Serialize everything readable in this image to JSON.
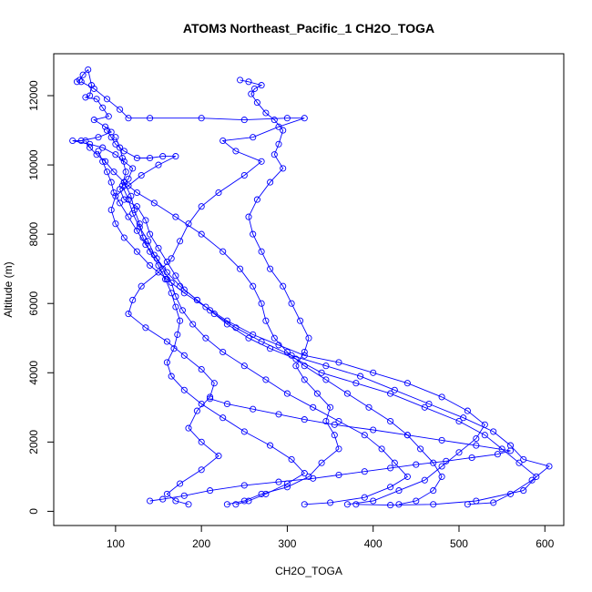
{
  "chart_data": {
    "type": "line",
    "title": "ATOM3 Northeast_Pacific_1 CH2O_TOGA",
    "xlabel": "CH2O_TOGA",
    "ylabel": "Altitude (m)",
    "xlim": [
      28,
      622
    ],
    "ylim": [
      -410,
      13210
    ],
    "xticks": [
      100,
      200,
      300,
      400,
      500,
      600
    ],
    "yticks": [
      0,
      2000,
      4000,
      6000,
      8000,
      10000,
      12000
    ],
    "grid": false,
    "marker": "open-circle",
    "color": "#0000ff",
    "series": [
      {
        "points": [
          [
            55,
            12400
          ],
          [
            58,
            12450
          ],
          [
            62,
            12600
          ],
          [
            68,
            12750
          ],
          [
            72,
            12300
          ],
          [
            70,
            12000
          ],
          [
            65,
            11950
          ],
          [
            78,
            11900
          ],
          [
            85,
            11650
          ],
          [
            92,
            11400
          ],
          [
            75,
            11300
          ],
          [
            88,
            11100
          ],
          [
            95,
            10950
          ],
          [
            80,
            10800
          ],
          [
            60,
            10700
          ],
          [
            50,
            10700
          ],
          [
            70,
            10600
          ],
          [
            85,
            10500
          ],
          [
            100,
            10300
          ],
          [
            110,
            10100
          ],
          [
            120,
            9900
          ],
          [
            115,
            9600
          ],
          [
            105,
            9300
          ],
          [
            110,
            9000
          ],
          [
            125,
            8800
          ],
          [
            135,
            8400
          ],
          [
            140,
            8000
          ],
          [
            150,
            7600
          ],
          [
            160,
            7200
          ],
          [
            170,
            6800
          ],
          [
            180,
            6400
          ],
          [
            195,
            6100
          ],
          [
            210,
            5800
          ],
          [
            230,
            5400
          ],
          [
            255,
            5000
          ],
          [
            280,
            4700
          ],
          [
            310,
            4400
          ],
          [
            340,
            4000
          ],
          [
            380,
            3700
          ],
          [
            420,
            3400
          ],
          [
            460,
            3000
          ],
          [
            500,
            2600
          ],
          [
            530,
            2200
          ],
          [
            550,
            1800
          ],
          [
            570,
            1400
          ],
          [
            590,
            1000
          ],
          [
            575,
            600
          ],
          [
            520,
            300
          ],
          [
            470,
            200
          ],
          [
            420,
            180
          ],
          [
            380,
            200
          ]
        ]
      },
      {
        "points": [
          [
            60,
            12400
          ],
          [
            75,
            12200
          ],
          [
            90,
            11900
          ],
          [
            105,
            11600
          ],
          [
            115,
            11350
          ],
          [
            140,
            11350
          ],
          [
            200,
            11350
          ],
          [
            250,
            11300
          ],
          [
            300,
            11350
          ],
          [
            320,
            11350
          ],
          [
            290,
            11100
          ],
          [
            260,
            10800
          ],
          [
            225,
            10700
          ],
          [
            240,
            10400
          ],
          [
            270,
            10100
          ],
          [
            250,
            9700
          ],
          [
            220,
            9200
          ],
          [
            200,
            8800
          ],
          [
            185,
            8300
          ],
          [
            175,
            7800
          ],
          [
            165,
            7300
          ],
          [
            150,
            6900
          ],
          [
            130,
            6500
          ],
          [
            120,
            6100
          ],
          [
            115,
            5700
          ],
          [
            135,
            5300
          ],
          [
            160,
            4900
          ],
          [
            180,
            4500
          ],
          [
            200,
            4100
          ],
          [
            215,
            3700
          ],
          [
            210,
            3300
          ],
          [
            195,
            2900
          ],
          [
            185,
            2400
          ],
          [
            200,
            2000
          ],
          [
            220,
            1600
          ],
          [
            200,
            1200
          ],
          [
            175,
            800
          ],
          [
            160,
            500
          ],
          [
            170,
            300
          ],
          [
            185,
            200
          ]
        ]
      },
      {
        "points": [
          [
            245,
            12450
          ],
          [
            255,
            12400
          ],
          [
            270,
            12300
          ],
          [
            262,
            12200
          ],
          [
            258,
            12050
          ],
          [
            265,
            11800
          ],
          [
            275,
            11500
          ],
          [
            285,
            11300
          ],
          [
            295,
            11000
          ],
          [
            290,
            10600
          ],
          [
            285,
            10300
          ],
          [
            295,
            9900
          ],
          [
            280,
            9500
          ],
          [
            265,
            9000
          ],
          [
            255,
            8500
          ],
          [
            260,
            8000
          ],
          [
            270,
            7500
          ],
          [
            280,
            7000
          ],
          [
            295,
            6500
          ],
          [
            305,
            6000
          ],
          [
            315,
            5500
          ],
          [
            325,
            5000
          ],
          [
            320,
            4600
          ],
          [
            310,
            4200
          ],
          [
            320,
            3800
          ],
          [
            335,
            3400
          ],
          [
            350,
            3000
          ],
          [
            345,
            2600
          ],
          [
            355,
            2200
          ],
          [
            360,
            1800
          ],
          [
            340,
            1400
          ],
          [
            325,
            1000
          ],
          [
            300,
            700
          ],
          [
            270,
            500
          ],
          [
            250,
            300
          ],
          [
            230,
            200
          ]
        ]
      },
      {
        "points": [
          [
            90,
            11000
          ],
          [
            95,
            10800
          ],
          [
            100,
            10600
          ],
          [
            110,
            10400
          ],
          [
            125,
            10200
          ],
          [
            140,
            10200
          ],
          [
            155,
            10250
          ],
          [
            170,
            10250
          ],
          [
            150,
            10000
          ],
          [
            130,
            9700
          ],
          [
            115,
            9400
          ],
          [
            100,
            9100
          ],
          [
            95,
            8700
          ],
          [
            100,
            8300
          ],
          [
            110,
            7900
          ],
          [
            125,
            7500
          ],
          [
            140,
            7100
          ],
          [
            160,
            6700
          ],
          [
            180,
            6300
          ],
          [
            205,
            5900
          ],
          [
            230,
            5500
          ],
          [
            260,
            5100
          ],
          [
            290,
            4800
          ],
          [
            320,
            4500
          ],
          [
            360,
            4300
          ],
          [
            400,
            4000
          ],
          [
            440,
            3700
          ],
          [
            480,
            3300
          ],
          [
            510,
            2900
          ],
          [
            530,
            2500
          ],
          [
            520,
            2100
          ],
          [
            500,
            1700
          ],
          [
            480,
            1300
          ],
          [
            460,
            900
          ],
          [
            430,
            600
          ],
          [
            400,
            300
          ],
          [
            370,
            200
          ]
        ]
      },
      {
        "points": [
          [
            100,
            10800
          ],
          [
            105,
            10500
          ],
          [
            108,
            10200
          ],
          [
            112,
            9800
          ],
          [
            108,
            9400
          ],
          [
            115,
            9000
          ],
          [
            120,
            8600
          ],
          [
            128,
            8200
          ],
          [
            138,
            7800
          ],
          [
            145,
            7400
          ],
          [
            155,
            7000
          ],
          [
            165,
            6600
          ],
          [
            170,
            6200
          ],
          [
            178,
            5800
          ],
          [
            190,
            5400
          ],
          [
            205,
            5000
          ],
          [
            225,
            4600
          ],
          [
            250,
            4200
          ],
          [
            275,
            3800
          ],
          [
            300,
            3400
          ],
          [
            330,
            3000
          ],
          [
            360,
            2600
          ],
          [
            390,
            2200
          ],
          [
            410,
            1800
          ],
          [
            425,
            1400
          ],
          [
            440,
            1000
          ],
          [
            420,
            700
          ],
          [
            390,
            400
          ],
          [
            350,
            250
          ],
          [
            320,
            200
          ]
        ]
      },
      {
        "points": [
          [
            80,
            10400
          ],
          [
            85,
            10100
          ],
          [
            90,
            9800
          ],
          [
            95,
            9500
          ],
          [
            98,
            9200
          ],
          [
            105,
            8900
          ],
          [
            115,
            8500
          ],
          [
            125,
            8100
          ],
          [
            135,
            7700
          ],
          [
            148,
            7300
          ],
          [
            160,
            6900
          ],
          [
            175,
            6500
          ],
          [
            195,
            6100
          ],
          [
            215,
            5700
          ],
          [
            240,
            5300
          ],
          [
            270,
            4900
          ],
          [
            305,
            4500
          ],
          [
            345,
            4200
          ],
          [
            385,
            3900
          ],
          [
            425,
            3500
          ],
          [
            465,
            3100
          ],
          [
            505,
            2700
          ],
          [
            540,
            2300
          ],
          [
            560,
            1900
          ],
          [
            575,
            1500
          ],
          [
            605,
            1300
          ],
          [
            585,
            900
          ],
          [
            560,
            500
          ],
          [
            540,
            250
          ],
          [
            510,
            200
          ]
        ]
      },
      {
        "points": [
          [
            110,
            9500
          ],
          [
            118,
            9100
          ],
          [
            122,
            8700
          ],
          [
            128,
            8300
          ],
          [
            132,
            7900
          ],
          [
            140,
            7500
          ],
          [
            150,
            7100
          ],
          [
            158,
            6700
          ],
          [
            165,
            6300
          ],
          [
            170,
            5900
          ],
          [
            175,
            5500
          ],
          [
            172,
            5100
          ],
          [
            168,
            4700
          ],
          [
            160,
            4300
          ],
          [
            165,
            3900
          ],
          [
            180,
            3500
          ],
          [
            200,
            3100
          ],
          [
            225,
            2700
          ],
          [
            250,
            2300
          ],
          [
            280,
            1900
          ],
          [
            305,
            1500
          ],
          [
            320,
            1100
          ],
          [
            300,
            800
          ],
          [
            275,
            500
          ],
          [
            255,
            300
          ],
          [
            240,
            200
          ]
        ]
      },
      {
        "points": [
          [
            65,
            10700
          ],
          [
            70,
            10500
          ],
          [
            78,
            10300
          ],
          [
            88,
            10100
          ],
          [
            98,
            9800
          ],
          [
            110,
            9500
          ],
          [
            125,
            9200
          ],
          [
            145,
            8900
          ],
          [
            170,
            8500
          ],
          [
            200,
            8000
          ],
          [
            225,
            7500
          ],
          [
            245,
            7000
          ],
          [
            260,
            6500
          ],
          [
            270,
            6000
          ],
          [
            275,
            5500
          ],
          [
            285,
            5000
          ],
          [
            300,
            4600
          ],
          [
            320,
            4200
          ],
          [
            345,
            3800
          ],
          [
            370,
            3400
          ],
          [
            395,
            3000
          ],
          [
            420,
            2600
          ],
          [
            440,
            2200
          ],
          [
            455,
            1800
          ],
          [
            470,
            1400
          ],
          [
            480,
            1000
          ],
          [
            470,
            600
          ],
          [
            450,
            300
          ],
          [
            430,
            200
          ]
        ]
      },
      {
        "points": [
          [
            140,
            300
          ],
          [
            155,
            350
          ],
          [
            180,
            450
          ],
          [
            210,
            600
          ],
          [
            250,
            750
          ],
          [
            290,
            850
          ],
          [
            330,
            950
          ],
          [
            360,
            1050
          ],
          [
            390,
            1150
          ],
          [
            420,
            1250
          ],
          [
            450,
            1350
          ],
          [
            485,
            1450
          ],
          [
            515,
            1550
          ],
          [
            545,
            1650
          ],
          [
            560,
            1750
          ],
          [
            520,
            1900
          ],
          [
            480,
            2050
          ],
          [
            440,
            2200
          ],
          [
            400,
            2350
          ],
          [
            355,
            2500
          ],
          [
            320,
            2650
          ],
          [
            290,
            2800
          ],
          [
            260,
            2950
          ],
          [
            230,
            3100
          ],
          [
            210,
            3250
          ]
        ]
      }
    ]
  }
}
